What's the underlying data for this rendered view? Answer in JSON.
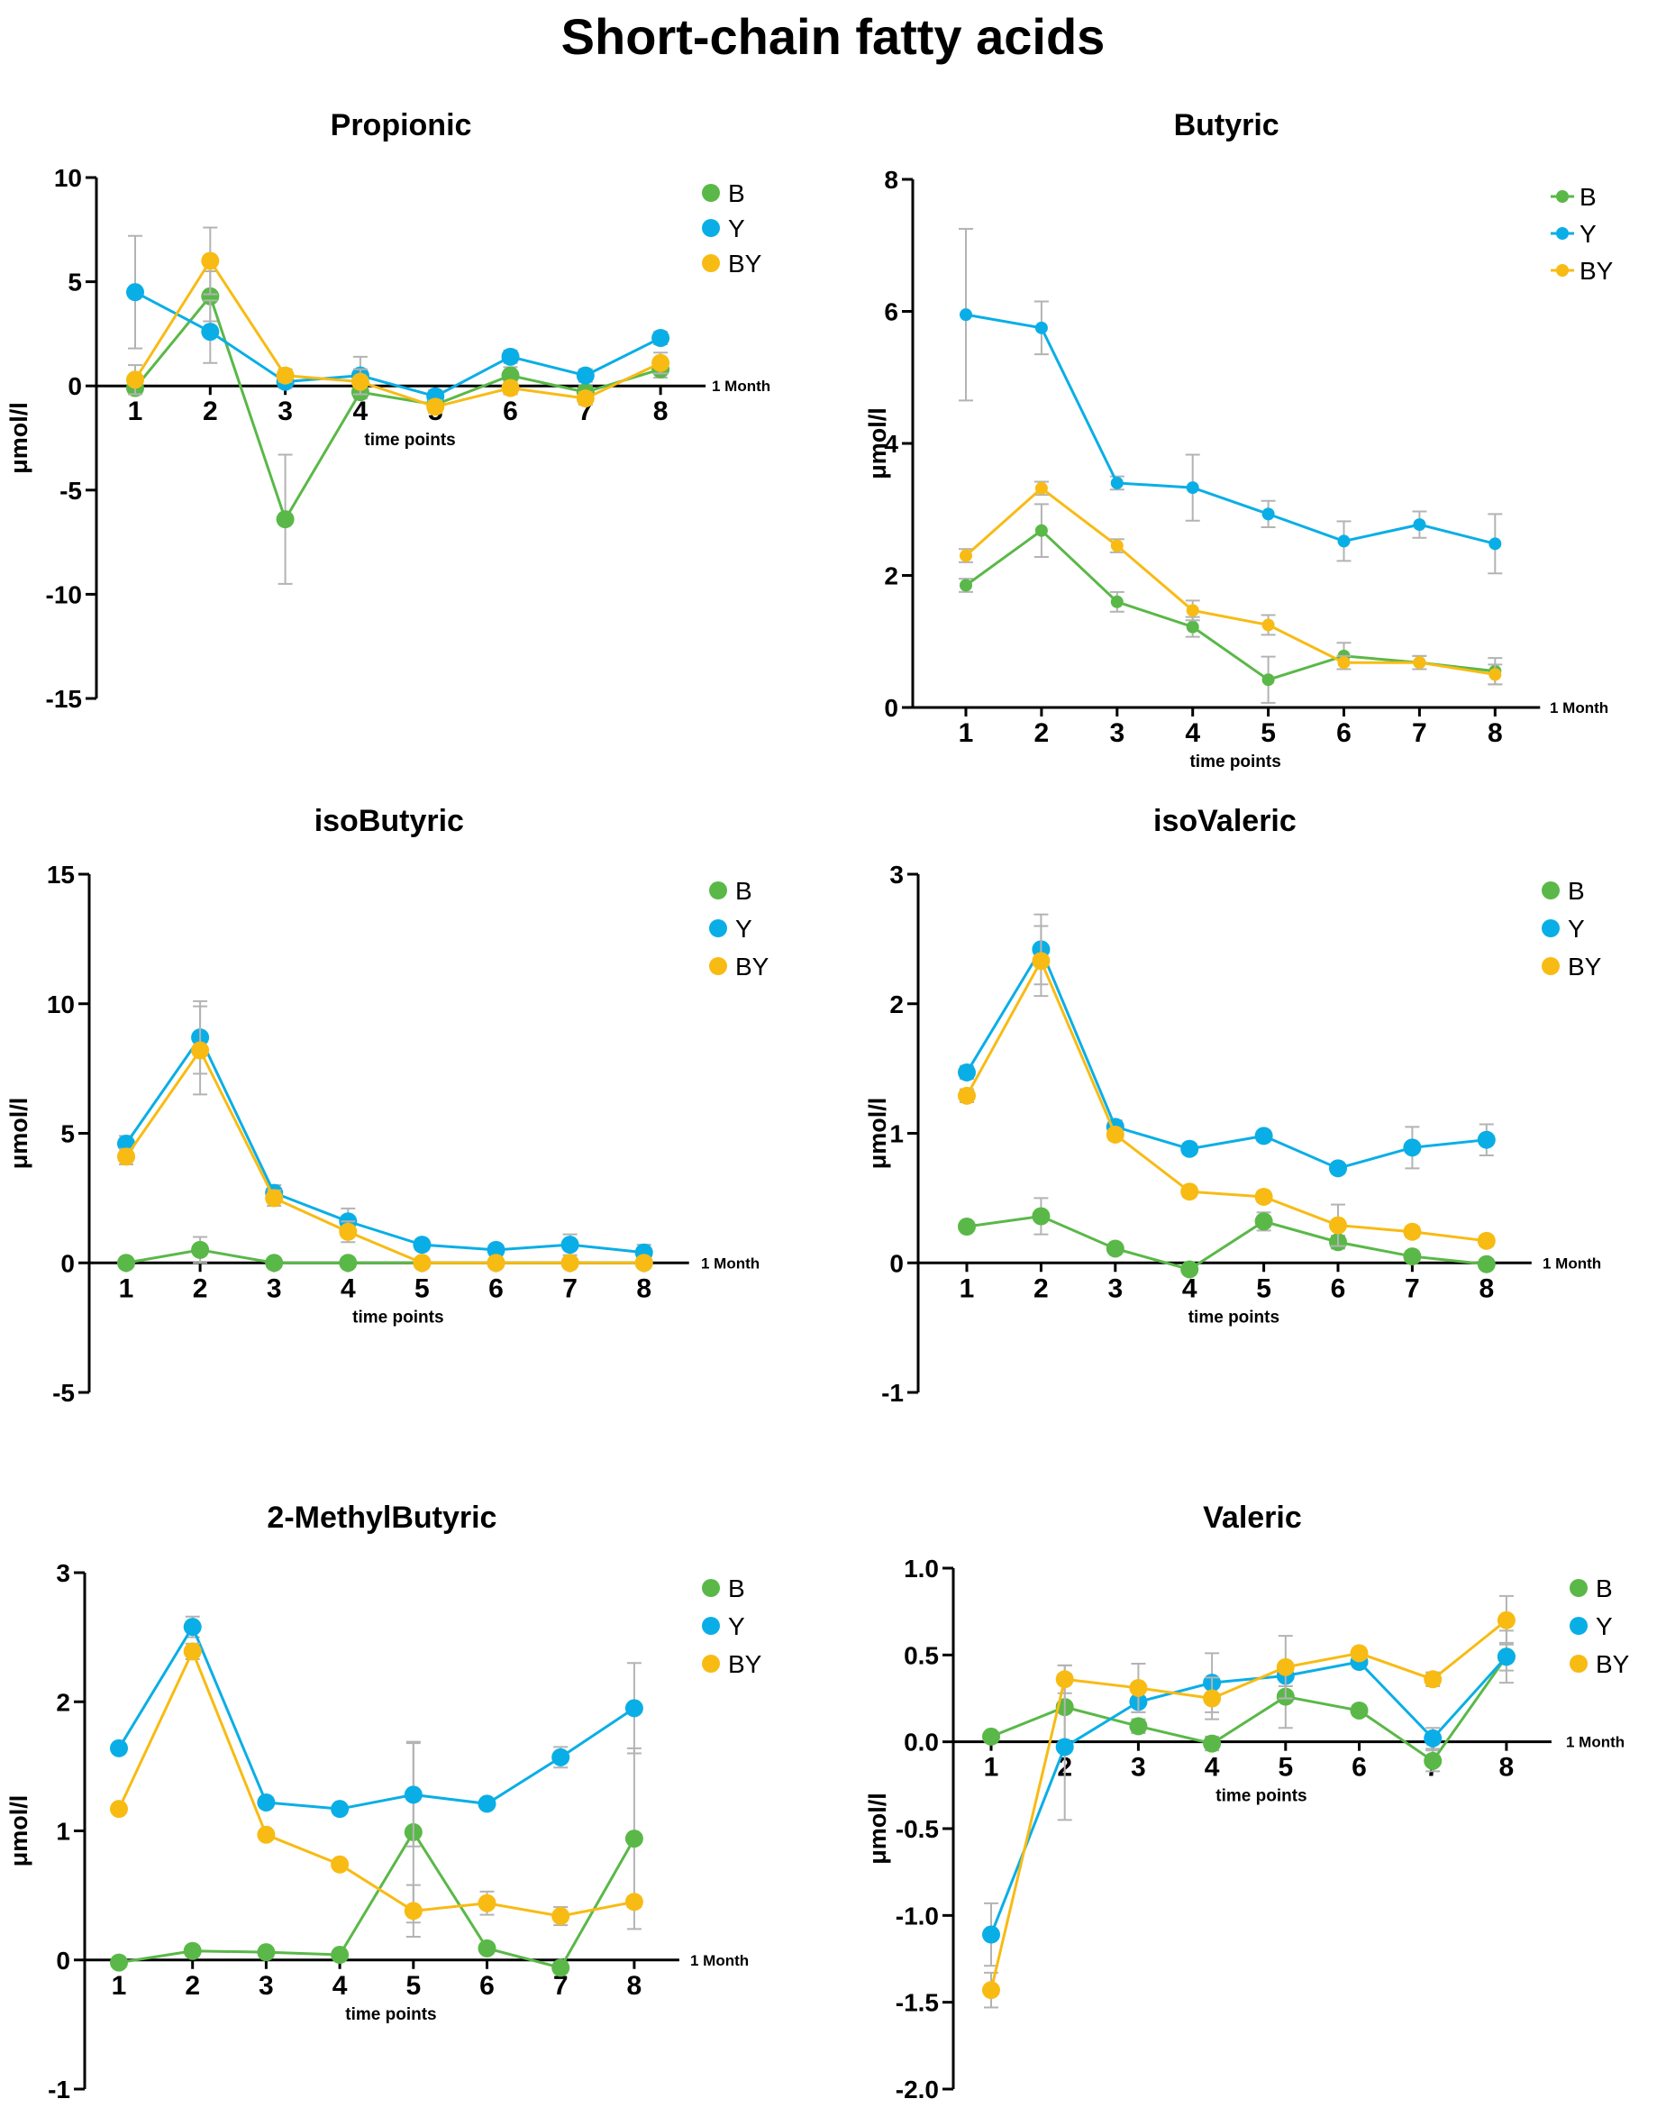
{
  "title": "Short-chain fatty acids",
  "colors": {
    "B": "#5ab848",
    "Y": "#0aaee6",
    "BY": "#f8bb14"
  },
  "chart_data": [
    {
      "type": "line",
      "title": "Propionic",
      "categories": [
        "1",
        "2",
        "3",
        "4",
        "5",
        "6",
        "7",
        "8"
      ],
      "xlabel": "time points",
      "ylabel": "μmol/l",
      "ylim": [
        -15,
        10
      ],
      "yticks": [
        10,
        5,
        0,
        -5,
        -10,
        -15
      ],
      "ytick_labels": [
        "10",
        "5",
        "0",
        "-5",
        "-10",
        "-15"
      ],
      "reference_label": "1 Month",
      "legend": [
        "B",
        "Y",
        "BY"
      ],
      "series": [
        {
          "name": "B",
          "values": [
            -0.1,
            4.3,
            -6.4,
            -0.3,
            -0.9,
            0.5,
            -0.3,
            0.8
          ],
          "errors": [
            0.3,
            1.2,
            3.1,
            0.3,
            0.3,
            0.4,
            0.3,
            0.4
          ]
        },
        {
          "name": "Y",
          "values": [
            4.5,
            2.6,
            0.2,
            0.5,
            -0.5,
            1.4,
            0.5,
            2.3
          ],
          "errors": [
            2.7,
            1.5,
            0.3,
            0.9,
            0.3,
            0.3,
            0.3,
            0.3
          ]
        },
        {
          "name": "BY",
          "values": [
            0.3,
            6.0,
            0.5,
            0.2,
            -1.0,
            -0.1,
            -0.6,
            1.1
          ],
          "errors": [
            0.7,
            1.6,
            0.3,
            0.6,
            0.3,
            0.3,
            0.3,
            0.5
          ]
        }
      ]
    },
    {
      "type": "line",
      "title": "Butyric",
      "categories": [
        "1",
        "2",
        "3",
        "4",
        "5",
        "6",
        "7",
        "8"
      ],
      "xlabel": "time points",
      "ylabel": "μmol/l",
      "ylim": [
        0,
        8
      ],
      "yticks": [
        0,
        2,
        4,
        6,
        8
      ],
      "ytick_labels": [
        "0",
        "2",
        "4",
        "6",
        "8"
      ],
      "reference_label": "1 Month",
      "legend": [
        "B",
        "Y",
        "BY"
      ],
      "series": [
        {
          "name": "B",
          "values": [
            1.85,
            2.68,
            1.6,
            1.22,
            0.42,
            0.78,
            0.68,
            0.55
          ],
          "errors": [
            0.1,
            0.4,
            0.15,
            0.15,
            0.35,
            0.2,
            0.1,
            0.2
          ]
        },
        {
          "name": "Y",
          "values": [
            5.95,
            5.75,
            3.4,
            3.33,
            2.93,
            2.52,
            2.77,
            2.48
          ],
          "errors": [
            1.3,
            0.4,
            0.1,
            0.5,
            0.2,
            0.3,
            0.2,
            0.45
          ]
        },
        {
          "name": "BY",
          "values": [
            2.3,
            3.32,
            2.45,
            1.47,
            1.25,
            0.68,
            0.68,
            0.5
          ],
          "errors": [
            0.1,
            0.1,
            0.1,
            0.15,
            0.15,
            0.1,
            0.1,
            0.15
          ]
        }
      ]
    },
    {
      "type": "line",
      "title": "isoButyric",
      "categories": [
        "1",
        "2",
        "3",
        "4",
        "5",
        "6",
        "7",
        "8"
      ],
      "xlabel": "time points",
      "ylabel": "μmol/l",
      "ylim": [
        -5,
        15
      ],
      "yticks": [
        15,
        10,
        5,
        0,
        -5
      ],
      "ytick_labels": [
        "15",
        "10",
        "5",
        "0",
        "-5"
      ],
      "reference_label": "1 Month",
      "legend": [
        "B",
        "Y",
        "BY"
      ],
      "series": [
        {
          "name": "B",
          "values": [
            0,
            0.5,
            0,
            0,
            0,
            0,
            0,
            0
          ],
          "errors": [
            0,
            0.5,
            0,
            0,
            0,
            0,
            0,
            0
          ]
        },
        {
          "name": "Y",
          "values": [
            4.6,
            8.7,
            2.7,
            1.6,
            0.7,
            0.5,
            0.7,
            0.4
          ],
          "errors": [
            0.3,
            1.4,
            0.3,
            0.5,
            0.2,
            0.2,
            0.4,
            0.3
          ]
        },
        {
          "name": "BY",
          "values": [
            4.1,
            8.2,
            2.5,
            1.2,
            0,
            0,
            0,
            0
          ],
          "errors": [
            0.3,
            1.7,
            0.3,
            0.4,
            0,
            0,
            0,
            0
          ]
        }
      ]
    },
    {
      "type": "line",
      "title": "isoValeric",
      "categories": [
        "1",
        "2",
        "3",
        "4",
        "5",
        "6",
        "7",
        "8"
      ],
      "xlabel": "time points",
      "ylabel": "μmol/l",
      "ylim": [
        -1,
        3
      ],
      "yticks": [
        3,
        2,
        1,
        0,
        -1
      ],
      "ytick_labels": [
        "3",
        "2",
        "1",
        "0",
        "-1"
      ],
      "reference_label": "1 Month",
      "legend": [
        "B",
        "Y",
        "BY"
      ],
      "series": [
        {
          "name": "B",
          "values": [
            0.28,
            0.36,
            0.11,
            -0.05,
            0.32,
            0.16,
            0.05,
            -0.01
          ],
          "errors": [
            0.03,
            0.14,
            0.03,
            0.03,
            0.07,
            0.05,
            0.04,
            0.03
          ]
        },
        {
          "name": "Y",
          "values": [
            1.47,
            2.42,
            1.05,
            0.88,
            0.98,
            0.73,
            0.89,
            0.95
          ],
          "errors": [
            0.05,
            0.27,
            0.05,
            0.04,
            0.04,
            0.04,
            0.16,
            0.12
          ]
        },
        {
          "name": "BY",
          "values": [
            1.29,
            2.33,
            0.99,
            0.55,
            0.51,
            0.29,
            0.24,
            0.17
          ],
          "errors": [
            0.05,
            0.27,
            0.04,
            0.04,
            0.04,
            0.16,
            0.04,
            0.04
          ]
        }
      ]
    },
    {
      "type": "line",
      "title": "2-MethylButyric",
      "categories": [
        "1",
        "2",
        "3",
        "4",
        "5",
        "6",
        "7",
        "8"
      ],
      "xlabel": "time points",
      "ylabel": "μmol/l",
      "ylim": [
        -1,
        3
      ],
      "yticks": [
        3,
        2,
        1,
        0,
        -1
      ],
      "ytick_labels": [
        "3",
        "2",
        "1",
        "0",
        "-1"
      ],
      "reference_label": "1 Month",
      "legend": [
        "B",
        "Y",
        "BY"
      ],
      "series": [
        {
          "name": "B",
          "values": [
            -0.02,
            0.07,
            0.06,
            0.04,
            0.99,
            0.09,
            -0.06,
            0.94
          ],
          "errors": [
            0.02,
            0.04,
            0.02,
            0.02,
            0.7,
            0.03,
            0.04,
            0.7
          ]
        },
        {
          "name": "Y",
          "values": [
            1.64,
            2.58,
            1.22,
            1.17,
            1.28,
            1.21,
            1.57,
            1.95
          ],
          "errors": [
            0.03,
            0.08,
            0.04,
            0.03,
            0.4,
            0.03,
            0.08,
            0.35
          ]
        },
        {
          "name": "BY",
          "values": [
            1.17,
            2.39,
            0.97,
            0.74,
            0.38,
            0.44,
            0.34,
            0.45
          ],
          "errors": [
            0.03,
            0.06,
            0.03,
            0.03,
            0.2,
            0.09,
            0.07,
            0.04
          ]
        }
      ]
    },
    {
      "type": "line",
      "title": "Valeric",
      "categories": [
        "1",
        "2",
        "3",
        "4",
        "5",
        "6",
        "7",
        "8"
      ],
      "xlabel": "time points",
      "ylabel": "μmol/l",
      "ylim": [
        -2.0,
        1.0
      ],
      "yticks": [
        1.0,
        0.5,
        0.0,
        -0.5,
        -1.0,
        -1.5,
        -2.0
      ],
      "ytick_labels": [
        "1.0",
        "0.5",
        "0.0",
        "-0.5",
        "-1.0",
        "-1.5",
        "-2.0"
      ],
      "reference_label": "1 Month",
      "legend": [
        "B",
        "Y",
        "BY"
      ],
      "series": [
        {
          "name": "B",
          "values": [
            0.03,
            0.2,
            0.09,
            -0.01,
            0.26,
            0.18,
            -0.11,
            0.49
          ],
          "errors": [
            0.02,
            0.24,
            0.04,
            0.04,
            0.18,
            0.03,
            0.06,
            0.08
          ]
        },
        {
          "name": "Y",
          "values": [
            -1.11,
            -0.03,
            0.23,
            0.34,
            0.38,
            0.46,
            0.02,
            0.49
          ],
          "errors": [
            0.18,
            0.42,
            0.06,
            0.17,
            0.06,
            0.03,
            0.06,
            0.15
          ]
        },
        {
          "name": "BY",
          "values": [
            -1.43,
            0.36,
            0.31,
            0.25,
            0.43,
            0.51,
            0.36,
            0.7
          ],
          "errors": [
            0.1,
            0.08,
            0.14,
            0.12,
            0.18,
            0.03,
            0.04,
            0.14
          ]
        }
      ]
    }
  ]
}
